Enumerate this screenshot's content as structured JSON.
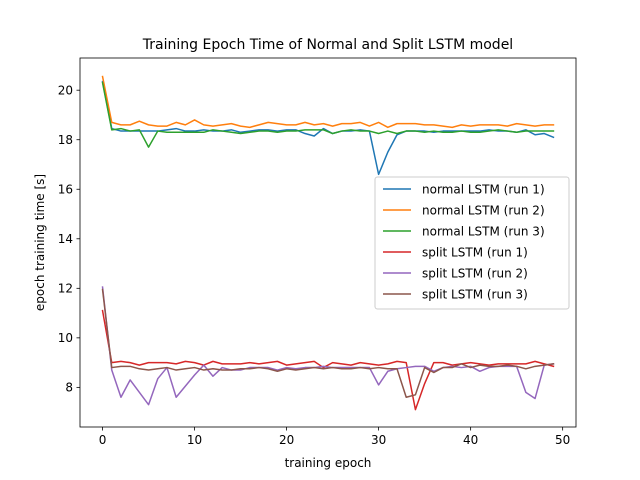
{
  "chart_data": {
    "type": "line",
    "title": "Training Epoch Time of Normal and Split LSTM model",
    "xlabel": "training epoch",
    "ylabel": "epoch training time [s]",
    "xlim": [
      -2.45,
      51.45
    ],
    "ylim": [
      6.4,
      21.3
    ],
    "xticks": [
      0,
      10,
      20,
      30,
      40,
      50
    ],
    "yticks": [
      8,
      10,
      12,
      14,
      16,
      18,
      20
    ],
    "grid": false,
    "legend_position": "center-right",
    "series": [
      {
        "name": "normal LSTM (run 1)",
        "color": "#1f77b4",
        "values": [
          20.35,
          18.45,
          18.35,
          18.35,
          18.35,
          18.35,
          18.35,
          18.4,
          18.45,
          18.35,
          18.35,
          18.4,
          18.35,
          18.35,
          18.4,
          18.3,
          18.35,
          18.4,
          18.4,
          18.35,
          18.4,
          18.4,
          18.25,
          18.15,
          18.45,
          18.25,
          18.35,
          18.35,
          18.4,
          18.35,
          16.6,
          17.5,
          18.2,
          18.35,
          18.35,
          18.35,
          18.3,
          18.35,
          18.35,
          18.35,
          18.35,
          18.35,
          18.4,
          18.35,
          18.35,
          18.3,
          18.4,
          18.2,
          18.25,
          18.1
        ]
      },
      {
        "name": "normal LSTM (run 2)",
        "color": "#ff7f0e",
        "values": [
          20.55,
          18.7,
          18.6,
          18.6,
          18.75,
          18.6,
          18.55,
          18.55,
          18.7,
          18.6,
          18.8,
          18.6,
          18.55,
          18.6,
          18.65,
          18.55,
          18.5,
          18.6,
          18.7,
          18.65,
          18.6,
          18.6,
          18.7,
          18.6,
          18.65,
          18.55,
          18.65,
          18.65,
          18.7,
          18.55,
          18.7,
          18.5,
          18.65,
          18.65,
          18.65,
          18.6,
          18.6,
          18.55,
          18.5,
          18.6,
          18.55,
          18.6,
          18.6,
          18.6,
          18.55,
          18.65,
          18.6,
          18.55,
          18.6,
          18.6
        ]
      },
      {
        "name": "normal LSTM (run 3)",
        "color": "#2ca02c",
        "values": [
          20.3,
          18.4,
          18.45,
          18.35,
          18.4,
          17.7,
          18.35,
          18.3,
          18.3,
          18.3,
          18.3,
          18.3,
          18.4,
          18.35,
          18.3,
          18.25,
          18.3,
          18.35,
          18.35,
          18.3,
          18.35,
          18.35,
          18.4,
          18.4,
          18.4,
          18.25,
          18.35,
          18.4,
          18.35,
          18.35,
          18.25,
          18.35,
          18.25,
          18.35,
          18.35,
          18.3,
          18.35,
          18.3,
          18.3,
          18.35,
          18.3,
          18.3,
          18.35,
          18.4,
          18.35,
          18.3,
          18.35,
          18.35,
          18.35,
          18.35
        ]
      },
      {
        "name": "split LSTM (run 1)",
        "color": "#d62728",
        "values": [
          11.1,
          9.0,
          9.05,
          9.0,
          8.9,
          9.0,
          9.0,
          9.0,
          8.95,
          9.05,
          9.0,
          8.9,
          9.05,
          8.95,
          8.95,
          8.95,
          9.0,
          8.95,
          9.0,
          9.05,
          8.9,
          8.95,
          9.0,
          9.05,
          8.8,
          9.0,
          8.95,
          8.9,
          9.0,
          8.95,
          8.9,
          8.95,
          9.05,
          9.0,
          7.1,
          8.15,
          9.0,
          9.0,
          8.9,
          8.95,
          9.0,
          8.95,
          8.9,
          8.95,
          8.95,
          8.95,
          8.95,
          9.05,
          8.95,
          8.85
        ]
      },
      {
        "name": "split LSTM (run 2)",
        "color": "#9467bd",
        "values": [
          12.05,
          8.7,
          7.6,
          8.3,
          7.8,
          7.3,
          8.35,
          8.8,
          7.6,
          8.05,
          8.5,
          8.9,
          8.45,
          8.8,
          8.7,
          8.7,
          8.8,
          8.8,
          8.8,
          8.7,
          8.8,
          8.75,
          8.8,
          8.8,
          8.85,
          8.8,
          8.8,
          8.8,
          8.8,
          8.8,
          8.1,
          8.65,
          8.75,
          8.8,
          8.85,
          8.85,
          8.65,
          8.8,
          8.85,
          8.8,
          8.85,
          8.65,
          8.8,
          8.85,
          8.85,
          8.85,
          7.8,
          7.55,
          8.9,
          8.95
        ]
      },
      {
        "name": "split LSTM (run 3)",
        "color": "#8c564b",
        "values": [
          11.95,
          8.8,
          8.85,
          8.85,
          8.75,
          8.7,
          8.75,
          8.8,
          8.7,
          8.75,
          8.8,
          8.7,
          8.75,
          8.7,
          8.7,
          8.75,
          8.75,
          8.8,
          8.75,
          8.65,
          8.75,
          8.7,
          8.75,
          8.8,
          8.75,
          8.8,
          8.75,
          8.75,
          8.8,
          8.75,
          8.8,
          8.75,
          8.75,
          7.6,
          7.7,
          8.8,
          8.6,
          8.8,
          8.8,
          8.95,
          8.8,
          8.9,
          8.85,
          8.85,
          8.9,
          8.85,
          8.75,
          8.85,
          8.9,
          8.95
        ]
      }
    ]
  }
}
